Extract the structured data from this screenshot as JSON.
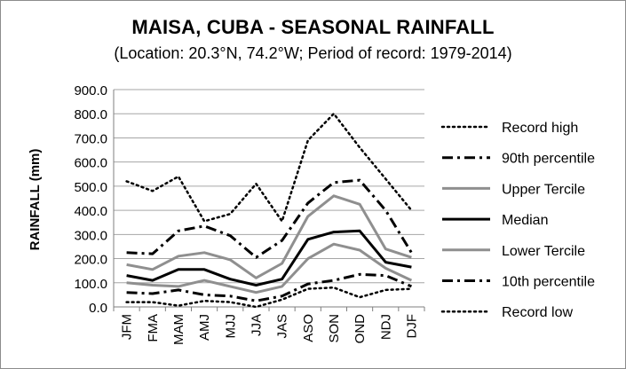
{
  "chart_data": {
    "type": "line",
    "title": "MAISA, CUBA - SEASONAL RAINFALL",
    "subtitle": "(Location: 20.3°N, 74.2°W; Period of record: 1979-2014)",
    "xlabel": "",
    "ylabel": "RAINFALL (mm)",
    "ylim": [
      0,
      900
    ],
    "ytick_step": 100,
    "ytick_labels": [
      "0.0",
      "100.0",
      "200.0",
      "300.0",
      "400.0",
      "500.0",
      "600.0",
      "700.0",
      "800.0",
      "900.0"
    ],
    "categories": [
      "JFM",
      "FMA",
      "MAM",
      "AMJ",
      "MJJ",
      "JJA",
      "JAS",
      "ASO",
      "SON",
      "OND",
      "NDJ",
      "DJF"
    ],
    "grid": true,
    "legend_position": "right",
    "series": [
      {
        "name": "Record high",
        "style": "dotted",
        "color": "#000000",
        "values": [
          520,
          480,
          540,
          355,
          385,
          510,
          355,
          690,
          800,
          660,
          530,
          400
        ]
      },
      {
        "name": "90th percentile",
        "style": "dashdot",
        "color": "#000000",
        "values": [
          225,
          220,
          315,
          335,
          295,
          205,
          275,
          430,
          515,
          525,
          400,
          225
        ]
      },
      {
        "name": "Upper Tercile",
        "style": "solid",
        "color": "#8f8f8f",
        "values": [
          175,
          155,
          210,
          225,
          195,
          120,
          180,
          375,
          460,
          425,
          240,
          205
        ]
      },
      {
        "name": "Median",
        "style": "solid",
        "color": "#000000",
        "values": [
          130,
          110,
          155,
          155,
          115,
          90,
          115,
          280,
          310,
          315,
          185,
          165
        ]
      },
      {
        "name": "Lower Tercile",
        "style": "solid",
        "color": "#8f8f8f",
        "values": [
          100,
          90,
          85,
          110,
          85,
          60,
          85,
          200,
          260,
          235,
          160,
          110
        ]
      },
      {
        "name": "10th percentile",
        "style": "dashdot",
        "color": "#000000",
        "values": [
          60,
          55,
          70,
          50,
          45,
          25,
          45,
          95,
          110,
          135,
          130,
          85
        ]
      },
      {
        "name": "Record low",
        "style": "dotted",
        "color": "#000000",
        "values": [
          20,
          20,
          5,
          25,
          20,
          0,
          30,
          75,
          80,
          40,
          70,
          75
        ]
      }
    ]
  }
}
